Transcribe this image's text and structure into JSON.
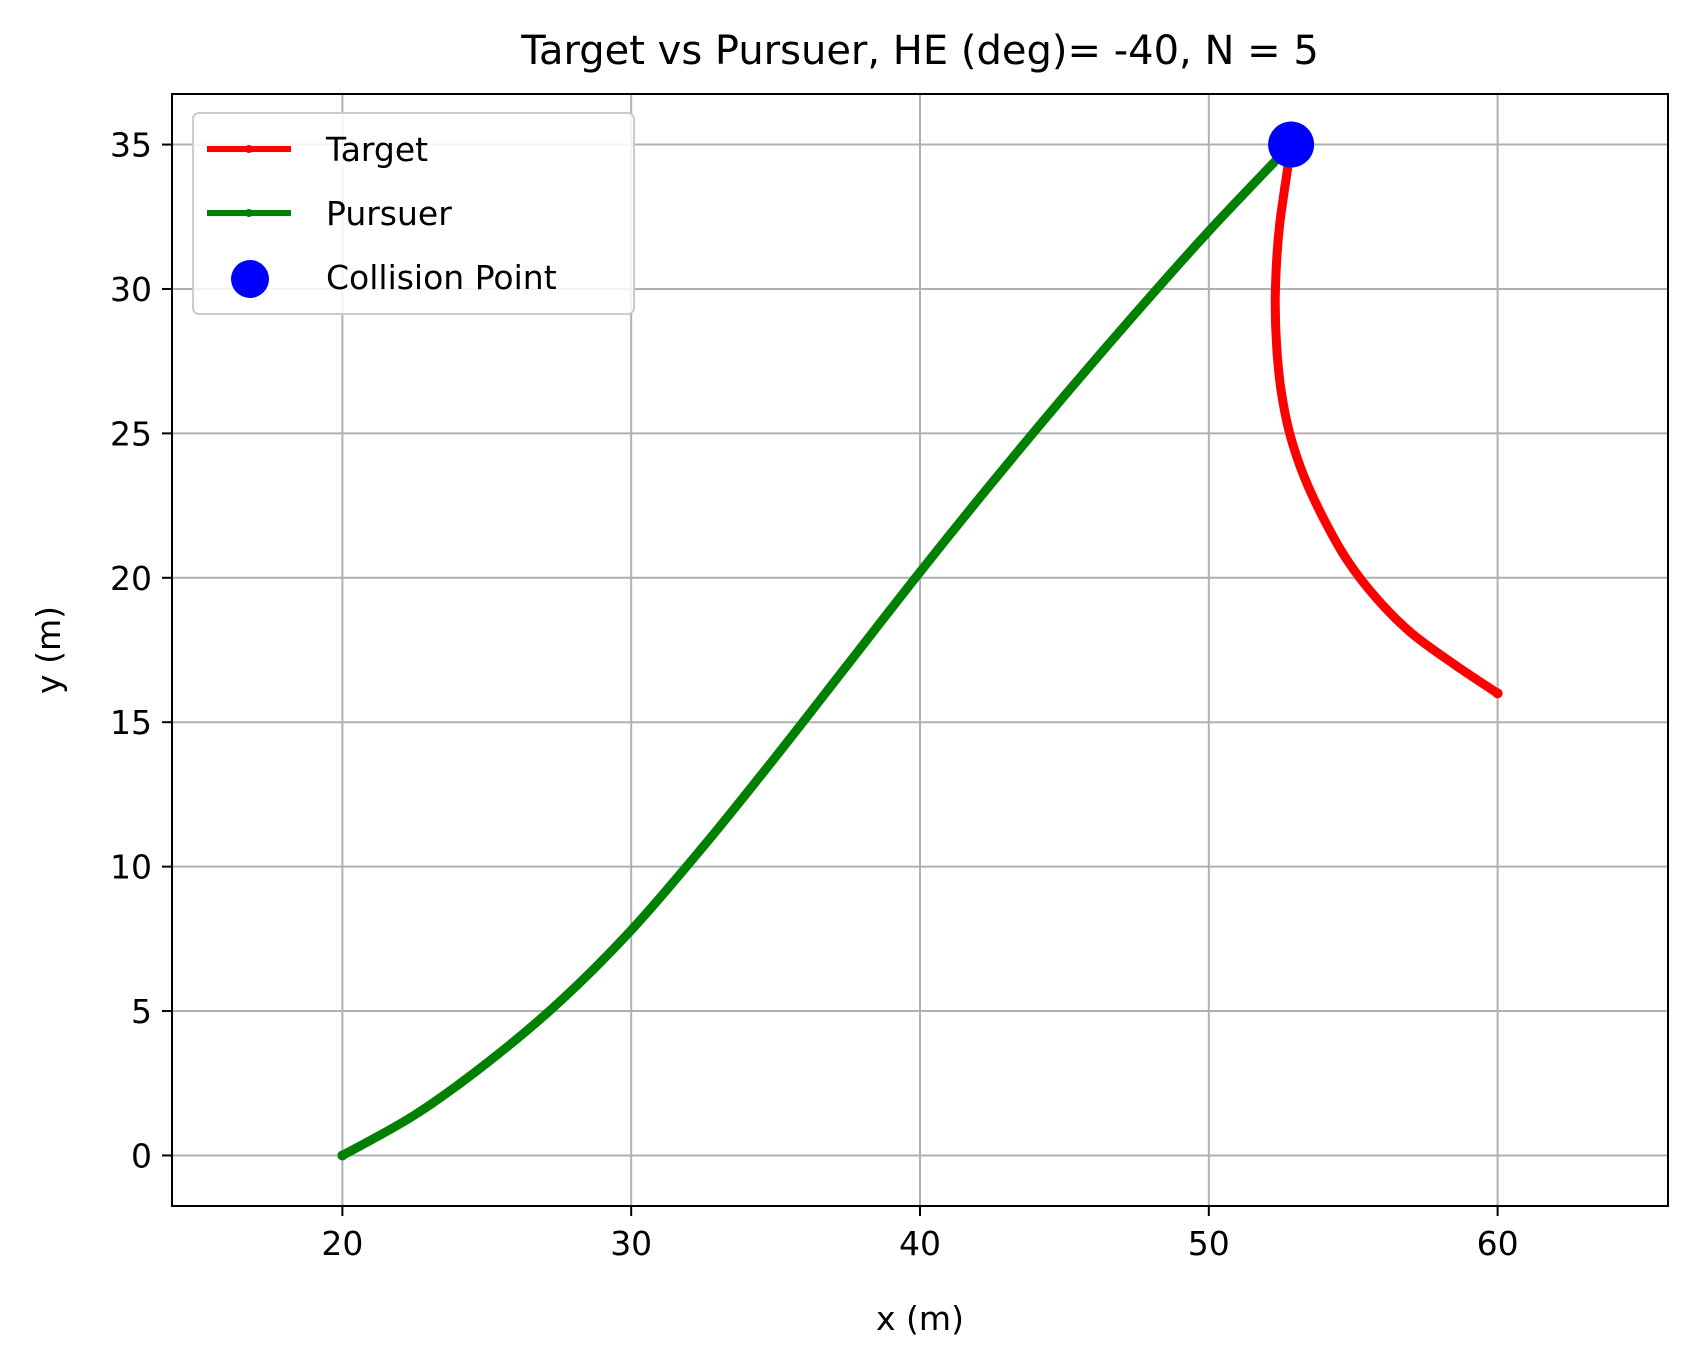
{
  "chart_data": {
    "type": "line",
    "title": "Target vs Pursuer, HE (deg)= -40, N = 5",
    "xlabel": "x (m)",
    "ylabel": "y (m)",
    "xlim": [
      14.1,
      65.9
    ],
    "ylim": [
      -1.75,
      36.75
    ],
    "xticks": [
      20,
      30,
      40,
      50,
      60
    ],
    "yticks": [
      0,
      5,
      10,
      15,
      20,
      25,
      30,
      35
    ],
    "grid": true,
    "legend": "upper left",
    "series": [
      {
        "name": "Target",
        "color": "#ff0000",
        "x": [
          60,
          58.5,
          57,
          55.8,
          54.8,
          54,
          53.3,
          52.8,
          52.5,
          52.35,
          52.3,
          52.35,
          52.45,
          52.6,
          52.75,
          52.85
        ],
        "y": [
          16,
          17,
          18.1,
          19.3,
          20.6,
          22,
          23.5,
          25,
          26.5,
          28,
          29.5,
          31,
          32.2,
          33.3,
          34.3,
          35
        ]
      },
      {
        "name": "Pursuer",
        "color": "#008000",
        "x": [
          20,
          22.5,
          25,
          27.5,
          30,
          32.5,
          35,
          37.5,
          40,
          42.5,
          45,
          47.5,
          50,
          52.85
        ],
        "y": [
          0,
          1.4,
          3.2,
          5.3,
          7.8,
          10.7,
          13.8,
          17,
          20.2,
          23.3,
          26.3,
          29.2,
          32,
          35
        ]
      },
      {
        "name": "Collision Point",
        "color": "#0000ff",
        "x": [
          52.85
        ],
        "y": [
          35
        ]
      }
    ]
  }
}
